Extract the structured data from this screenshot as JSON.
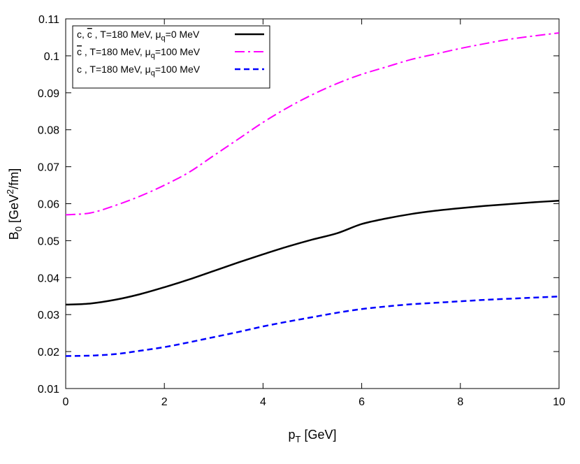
{
  "chart_data": {
    "type": "line",
    "xlabel": "p",
    "xlabel_sub": "T",
    "xlabel_unit": " [GeV]",
    "ylabel": "B",
    "ylabel_sub": "0",
    "ylabel_unit_pre": " [GeV",
    "ylabel_sup": "2",
    "ylabel_unit_post": "/fm]",
    "xlim": [
      0,
      10
    ],
    "ylim": [
      0.01,
      0.11
    ],
    "xticks": [
      0,
      2,
      4,
      6,
      8,
      10
    ],
    "yticks": [
      0.01,
      0.02,
      0.03,
      0.04,
      0.05,
      0.06,
      0.07,
      0.08,
      0.09,
      0.1,
      0.11
    ],
    "xtick_labels": [
      "0",
      "2",
      "4",
      "6",
      "8",
      "10"
    ],
    "ytick_labels": [
      "0.01",
      "0.02",
      "0.03",
      "0.04",
      "0.05",
      "0.06",
      "0.07",
      "0.08",
      "0.09",
      "0.1",
      "0.11"
    ],
    "grid": false,
    "legend_position": "top-left",
    "series": [
      {
        "label_pre": "c, ",
        "label_bar": "c",
        "label_mid": " , T=180 MeV, μ",
        "label_sub": "q",
        "label_post": "=0 MeV",
        "color": "#000000",
        "style": "solid",
        "x": [
          0,
          0.5,
          1,
          1.5,
          2,
          2.5,
          3,
          3.5,
          4,
          4.5,
          5,
          5.5,
          6,
          6.5,
          7,
          7.5,
          8,
          8.5,
          9,
          9.5,
          10
        ],
        "y": [
          0.0327,
          0.033,
          0.034,
          0.0355,
          0.0374,
          0.0395,
          0.0418,
          0.0441,
          0.0463,
          0.0484,
          0.0503,
          0.052,
          0.0545,
          0.056,
          0.0572,
          0.0581,
          0.0588,
          0.0594,
          0.0599,
          0.0604,
          0.0608
        ]
      },
      {
        "label_pre": "",
        "label_bar": "c",
        "label_mid": " , T=180 MeV, μ",
        "label_sub": "q",
        "label_post": "=100 MeV",
        "color": "#ff00ff",
        "style": "dash-dot",
        "x": [
          0,
          0.5,
          1,
          1.5,
          2,
          2.5,
          3,
          3.5,
          4,
          4.5,
          5,
          5.5,
          6,
          6.5,
          7,
          7.5,
          8,
          8.5,
          9,
          9.5,
          10
        ],
        "y": [
          0.057,
          0.0575,
          0.0595,
          0.062,
          0.065,
          0.0685,
          0.073,
          0.0775,
          0.082,
          0.086,
          0.0895,
          0.0925,
          0.095,
          0.097,
          0.099,
          0.1005,
          0.102,
          0.1033,
          0.1045,
          0.1054,
          0.1062
        ]
      },
      {
        "label_pre": "c , T=180 MeV, μ",
        "label_bar": "",
        "label_mid": "",
        "label_sub": "q",
        "label_post": "=100 MeV",
        "color": "#0000ff",
        "style": "dashed",
        "x": [
          0,
          0.5,
          1,
          1.5,
          2,
          2.5,
          3,
          3.5,
          4,
          4.5,
          5,
          5.5,
          6,
          6.5,
          7,
          7.5,
          8,
          8.5,
          9,
          9.5,
          10
        ],
        "y": [
          0.0188,
          0.0189,
          0.0193,
          0.0202,
          0.0212,
          0.0225,
          0.0239,
          0.0253,
          0.0268,
          0.0281,
          0.0293,
          0.0305,
          0.0315,
          0.0322,
          0.0328,
          0.0332,
          0.0336,
          0.034,
          0.0343,
          0.0346,
          0.0349
        ]
      }
    ]
  }
}
